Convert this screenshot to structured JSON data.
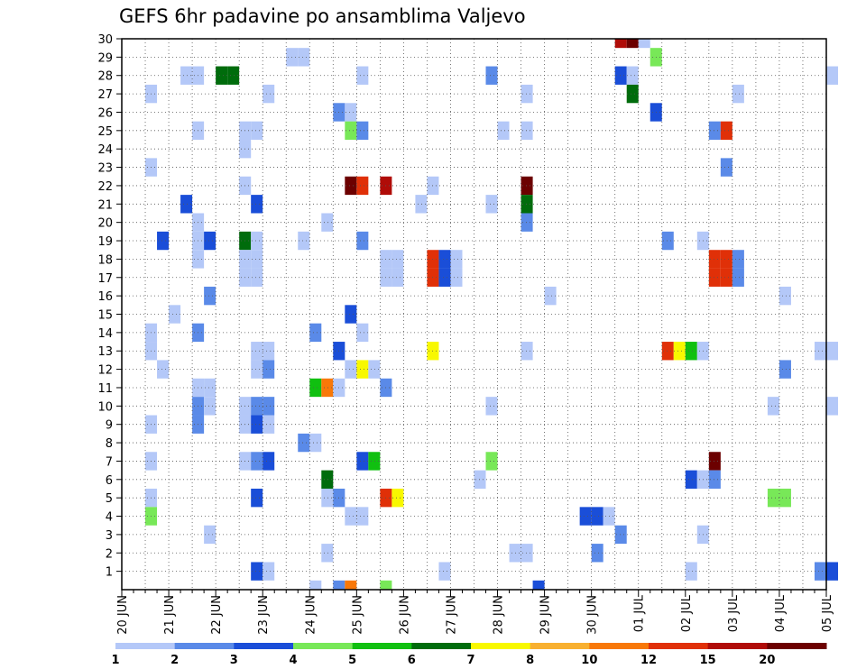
{
  "chart_data": {
    "type": "heatmap",
    "title": "GEFS 6hr padavine po ansamblima Valjevo",
    "xlabel": "",
    "ylabel": "",
    "x_ticks": [
      "20 JUN",
      "21 JUN",
      "22 JUN",
      "23 JUN",
      "24 JUN",
      "25 JUN",
      "26 JUN",
      "27 JUN",
      "28 JUN",
      "29 JUN",
      "30 JUN",
      "01 JUL",
      "02 JUL",
      "03 JUL",
      "04 JUL",
      "05 JUL"
    ],
    "y_ticks": [
      "1",
      "2",
      "3",
      "4",
      "5",
      "6",
      "7",
      "8",
      "9",
      "10",
      "11",
      "12",
      "13",
      "14",
      "15",
      "16",
      "17",
      "18",
      "19",
      "20",
      "21",
      "22",
      "23",
      "24",
      "25",
      "26",
      "27",
      "28",
      "29",
      "30"
    ],
    "ylim": [
      0,
      30
    ],
    "grid": true,
    "time_step": "6hr",
    "legend": {
      "position": "bottom",
      "labels": [
        "1",
        "2",
        "3",
        "4",
        "5",
        "6",
        "7",
        "8",
        "10",
        "12",
        "15",
        "20"
      ],
      "colors": [
        "#b4c8f8",
        "#5a8ae8",
        "#1a4ed8",
        "#78e858",
        "#10c010",
        "#006c0c",
        "#f8f800",
        "#f8b030",
        "#f87808",
        "#e03008",
        "#b00c08",
        "#6c0000"
      ]
    },
    "cells": [
      {
        "t": "30 JUN 12",
        "m": 30,
        "c": 10
      },
      {
        "t": "30 JUN 18",
        "m": 30,
        "c": 11
      },
      {
        "t": "01 JUL 00",
        "m": 30,
        "c": 0
      },
      {
        "t": "23 JUN 12",
        "m": 29,
        "c": 0
      },
      {
        "t": "23 JUN 18",
        "m": 29,
        "c": 0
      },
      {
        "t": "01 JUL 06",
        "m": 29,
        "c": 3
      },
      {
        "t": "21 JUN 06",
        "m": 28,
        "c": 0
      },
      {
        "t": "21 JUN 12",
        "m": 28,
        "c": 0
      },
      {
        "t": "22 JUN 00",
        "m": 28,
        "c": 5
      },
      {
        "t": "22 JUN 06",
        "m": 28,
        "c": 5
      },
      {
        "t": "25 JUN 00",
        "m": 28,
        "c": 0
      },
      {
        "t": "27 JUN 18",
        "m": 28,
        "c": 1
      },
      {
        "t": "30 JUN 12",
        "m": 28,
        "c": 2
      },
      {
        "t": "30 JUN 18",
        "m": 28,
        "c": 0
      },
      {
        "t": "05 JUL 00",
        "m": 28,
        "c": 0
      },
      {
        "t": "20 JUN 12",
        "m": 27,
        "c": 0
      },
      {
        "t": "23 JUN 00",
        "m": 27,
        "c": 0
      },
      {
        "t": "28 JUN 12",
        "m": 27,
        "c": 0
      },
      {
        "t": "30 JUN 18",
        "m": 27,
        "c": 5
      },
      {
        "t": "03 JUL 00",
        "m": 27,
        "c": 0
      },
      {
        "t": "24 JUN 12",
        "m": 26,
        "c": 1
      },
      {
        "t": "24 JUN 18",
        "m": 26,
        "c": 0
      },
      {
        "t": "01 JUL 06",
        "m": 26,
        "c": 2
      },
      {
        "t": "21 JUN 12",
        "m": 25,
        "c": 0
      },
      {
        "t": "22 JUN 12",
        "m": 25,
        "c": 0
      },
      {
        "t": "22 JUN 18",
        "m": 25,
        "c": 0
      },
      {
        "t": "24 JUN 18",
        "m": 25,
        "c": 3
      },
      {
        "t": "25 JUN 00",
        "m": 25,
        "c": 1
      },
      {
        "t": "28 JUN 00",
        "m": 25,
        "c": 0
      },
      {
        "t": "28 JUN 12",
        "m": 25,
        "c": 0
      },
      {
        "t": "02 JUL 12",
        "m": 25,
        "c": 1
      },
      {
        "t": "02 JUL 18",
        "m": 25,
        "c": 9
      },
      {
        "t": "22 JUN 12",
        "m": 24,
        "c": 0
      },
      {
        "t": "20 JUN 12",
        "m": 23,
        "c": 0
      },
      {
        "t": "02 JUL 18",
        "m": 23,
        "c": 1
      },
      {
        "t": "22 JUN 12",
        "m": 22,
        "c": 0
      },
      {
        "t": "24 JUN 18",
        "m": 22,
        "c": 11
      },
      {
        "t": "25 JUN 00",
        "m": 22,
        "c": 9
      },
      {
        "t": "25 JUN 12",
        "m": 22,
        "c": 10
      },
      {
        "t": "26 JUN 12",
        "m": 22,
        "c": 0
      },
      {
        "t": "28 JUN 12",
        "m": 22,
        "c": 11
      },
      {
        "t": "21 JUN 06",
        "m": 21,
        "c": 2
      },
      {
        "t": "22 JUN 18",
        "m": 21,
        "c": 2
      },
      {
        "t": "26 JUN 06",
        "m": 21,
        "c": 0
      },
      {
        "t": "27 JUN 18",
        "m": 21,
        "c": 0
      },
      {
        "t": "28 JUN 12",
        "m": 21,
        "c": 5
      },
      {
        "t": "21 JUN 12",
        "m": 20,
        "c": 0
      },
      {
        "t": "24 JUN 06",
        "m": 20,
        "c": 0
      },
      {
        "t": "28 JUN 12",
        "m": 20,
        "c": 1
      },
      {
        "t": "20 JUN 18",
        "m": 19,
        "c": 2
      },
      {
        "t": "21 JUN 12",
        "m": 19,
        "c": 0
      },
      {
        "t": "21 JUN 18",
        "m": 19,
        "c": 2
      },
      {
        "t": "22 JUN 12",
        "m": 19,
        "c": 5
      },
      {
        "t": "22 JUN 18",
        "m": 19,
        "c": 0
      },
      {
        "t": "23 JUN 18",
        "m": 19,
        "c": 0
      },
      {
        "t": "25 JUN 00",
        "m": 19,
        "c": 1
      },
      {
        "t": "01 JUL 12",
        "m": 19,
        "c": 1
      },
      {
        "t": "02 JUL 06",
        "m": 19,
        "c": 0
      },
      {
        "t": "21 JUN 12",
        "m": 18,
        "c": 0
      },
      {
        "t": "22 JUN 12",
        "m": 18,
        "c": 0
      },
      {
        "t": "22 JUN 18",
        "m": 18,
        "c": 0
      },
      {
        "t": "25 JUN 12",
        "m": 18,
        "c": 0
      },
      {
        "t": "25 JUN 18",
        "m": 18,
        "c": 0
      },
      {
        "t": "26 JUN 12",
        "m": 18,
        "c": 9
      },
      {
        "t": "26 JUN 18",
        "m": 18,
        "c": 2
      },
      {
        "t": "27 JUN 00",
        "m": 18,
        "c": 0
      },
      {
        "t": "02 JUL 12",
        "m": 18,
        "c": 9
      },
      {
        "t": "02 JUL 18",
        "m": 18,
        "c": 9
      },
      {
        "t": "03 JUL 00",
        "m": 18,
        "c": 1
      },
      {
        "t": "22 JUN 12",
        "m": 17,
        "c": 0
      },
      {
        "t": "22 JUN 18",
        "m": 17,
        "c": 0
      },
      {
        "t": "25 JUN 12",
        "m": 17,
        "c": 0
      },
      {
        "t": "25 JUN 18",
        "m": 17,
        "c": 0
      },
      {
        "t": "26 JUN 12",
        "m": 17,
        "c": 9
      },
      {
        "t": "26 JUN 18",
        "m": 17,
        "c": 2
      },
      {
        "t": "27 JUN 00",
        "m": 17,
        "c": 0
      },
      {
        "t": "02 JUL 12",
        "m": 17,
        "c": 9
      },
      {
        "t": "02 JUL 18",
        "m": 17,
        "c": 9
      },
      {
        "t": "03 JUL 00",
        "m": 17,
        "c": 1
      },
      {
        "t": "21 JUN 18",
        "m": 16,
        "c": 1
      },
      {
        "t": "29 JUN 00",
        "m": 16,
        "c": 0
      },
      {
        "t": "04 JUL 00",
        "m": 16,
        "c": 0
      },
      {
        "t": "21 JUN 00",
        "m": 15,
        "c": 0
      },
      {
        "t": "24 JUN 18",
        "m": 15,
        "c": 2
      },
      {
        "t": "20 JUN 12",
        "m": 14,
        "c": 0
      },
      {
        "t": "21 JUN 12",
        "m": 14,
        "c": 1
      },
      {
        "t": "24 JUN 00",
        "m": 14,
        "c": 1
      },
      {
        "t": "25 JUN 00",
        "m": 14,
        "c": 0
      },
      {
        "t": "20 JUN 12",
        "m": 13,
        "c": 0
      },
      {
        "t": "22 JUN 18",
        "m": 13,
        "c": 0
      },
      {
        "t": "23 JUN 00",
        "m": 13,
        "c": 0
      },
      {
        "t": "24 JUN 12",
        "m": 13,
        "c": 2
      },
      {
        "t": "26 JUN 12",
        "m": 13,
        "c": 6
      },
      {
        "t": "28 JUN 12",
        "m": 13,
        "c": 0
      },
      {
        "t": "01 JUL 12",
        "m": 13,
        "c": 9
      },
      {
        "t": "01 JUL 18",
        "m": 13,
        "c": 6
      },
      {
        "t": "02 JUL 00",
        "m": 13,
        "c": 4
      },
      {
        "t": "02 JUL 06",
        "m": 13,
        "c": 0
      },
      {
        "t": "04 JUL 18",
        "m": 13,
        "c": 0
      },
      {
        "t": "05 JUL 00",
        "m": 13,
        "c": 0
      },
      {
        "t": "20 JUN 18",
        "m": 12,
        "c": 0
      },
      {
        "t": "22 JUN 18",
        "m": 12,
        "c": 0
      },
      {
        "t": "23 JUN 00",
        "m": 12,
        "c": 1
      },
      {
        "t": "24 JUN 18",
        "m": 12,
        "c": 0
      },
      {
        "t": "25 JUN 00",
        "m": 12,
        "c": 6
      },
      {
        "t": "25 JUN 06",
        "m": 12,
        "c": 0
      },
      {
        "t": "04 JUL 00",
        "m": 12,
        "c": 1
      },
      {
        "t": "21 JUN 12",
        "m": 11,
        "c": 0
      },
      {
        "t": "21 JUN 18",
        "m": 11,
        "c": 0
      },
      {
        "t": "24 JUN 00",
        "m": 11,
        "c": 4
      },
      {
        "t": "24 JUN 06",
        "m": 11,
        "c": 8
      },
      {
        "t": "24 JUN 12",
        "m": 11,
        "c": 0
      },
      {
        "t": "25 JUN 12",
        "m": 11,
        "c": 1
      },
      {
        "t": "21 JUN 12",
        "m": 10,
        "c": 1
      },
      {
        "t": "21 JUN 18",
        "m": 10,
        "c": 0
      },
      {
        "t": "22 JUN 12",
        "m": 10,
        "c": 0
      },
      {
        "t": "22 JUN 18",
        "m": 10,
        "c": 1
      },
      {
        "t": "23 JUN 00",
        "m": 10,
        "c": 1
      },
      {
        "t": "27 JUN 18",
        "m": 10,
        "c": 0
      },
      {
        "t": "03 JUL 18",
        "m": 10,
        "c": 0
      },
      {
        "t": "05 JUL 00",
        "m": 10,
        "c": 0
      },
      {
        "t": "21 JUN 12",
        "m": 9,
        "c": 1
      },
      {
        "t": "22 JUN 12",
        "m": 9,
        "c": 0
      },
      {
        "t": "22 JUN 18",
        "m": 9,
        "c": 2
      },
      {
        "t": "23 JUN 00",
        "m": 9,
        "c": 0
      },
      {
        "t": "20 JUN 12",
        "m": 9,
        "c": 0
      },
      {
        "t": "23 JUN 18",
        "m": 8,
        "c": 1
      },
      {
        "t": "24 JUN 00",
        "m": 8,
        "c": 0
      },
      {
        "t": "20 JUN 12",
        "m": 7,
        "c": 0
      },
      {
        "t": "22 JUN 12",
        "m": 7,
        "c": 0
      },
      {
        "t": "22 JUN 18",
        "m": 7,
        "c": 1
      },
      {
        "t": "23 JUN 00",
        "m": 7,
        "c": 2
      },
      {
        "t": "25 JUN 00",
        "m": 7,
        "c": 2
      },
      {
        "t": "25 JUN 06",
        "m": 7,
        "c": 4
      },
      {
        "t": "27 JUN 18",
        "m": 7,
        "c": 3
      },
      {
        "t": "02 JUL 12",
        "m": 7,
        "c": 11
      },
      {
        "t": "24 JUN 06",
        "m": 6,
        "c": 5
      },
      {
        "t": "27 JUN 12",
        "m": 6,
        "c": 0
      },
      {
        "t": "02 JUL 00",
        "m": 6,
        "c": 2
      },
      {
        "t": "02 JUL 06",
        "m": 6,
        "c": 0
      },
      {
        "t": "02 JUL 12",
        "m": 6,
        "c": 1
      },
      {
        "t": "20 JUN 12",
        "m": 5,
        "c": 0
      },
      {
        "t": "22 JUN 18",
        "m": 5,
        "c": 2
      },
      {
        "t": "24 JUN 06",
        "m": 5,
        "c": 0
      },
      {
        "t": "24 JUN 12",
        "m": 5,
        "c": 1
      },
      {
        "t": "25 JUN 12",
        "m": 5,
        "c": 9
      },
      {
        "t": "25 JUN 18",
        "m": 5,
        "c": 6
      },
      {
        "t": "03 JUL 18",
        "m": 5,
        "c": 3
      },
      {
        "t": "04 JUL 00",
        "m": 5,
        "c": 3
      },
      {
        "t": "20 JUN 12",
        "m": 4,
        "c": 3
      },
      {
        "t": "24 JUN 18",
        "m": 4,
        "c": 0
      },
      {
        "t": "25 JUN 00",
        "m": 4,
        "c": 0
      },
      {
        "t": "29 JUN 18",
        "m": 4,
        "c": 2
      },
      {
        "t": "30 JUN 00",
        "m": 4,
        "c": 2
      },
      {
        "t": "30 JUN 06",
        "m": 4,
        "c": 0
      },
      {
        "t": "21 JUN 18",
        "m": 3,
        "c": 0
      },
      {
        "t": "30 JUN 12",
        "m": 3,
        "c": 1
      },
      {
        "t": "02 JUL 06",
        "m": 3,
        "c": 0
      },
      {
        "t": "24 JUN 06",
        "m": 2,
        "c": 0
      },
      {
        "t": "28 JUN 06",
        "m": 2,
        "c": 0
      },
      {
        "t": "28 JUN 12",
        "m": 2,
        "c": 0
      },
      {
        "t": "30 JUN 00",
        "m": 2,
        "c": 1
      },
      {
        "t": "22 JUN 18",
        "m": 1,
        "c": 2
      },
      {
        "t": "23 JUN 00",
        "m": 1,
        "c": 0
      },
      {
        "t": "26 JUN 18",
        "m": 1,
        "c": 0
      },
      {
        "t": "02 JUL 00",
        "m": 1,
        "c": 0
      },
      {
        "t": "04 JUL 18",
        "m": 1,
        "c": 1
      },
      {
        "t": "05 JUL 00",
        "m": 1,
        "c": 2
      },
      {
        "t": "24 JUN 00",
        "m": 0,
        "c": 0
      },
      {
        "t": "24 JUN 12",
        "m": 0,
        "c": 1
      },
      {
        "t": "24 JUN 18",
        "m": 0,
        "c": 8
      },
      {
        "t": "25 JUN 12",
        "m": 0,
        "c": 3
      },
      {
        "t": "28 JUN 18",
        "m": 0,
        "c": 2
      }
    ]
  }
}
